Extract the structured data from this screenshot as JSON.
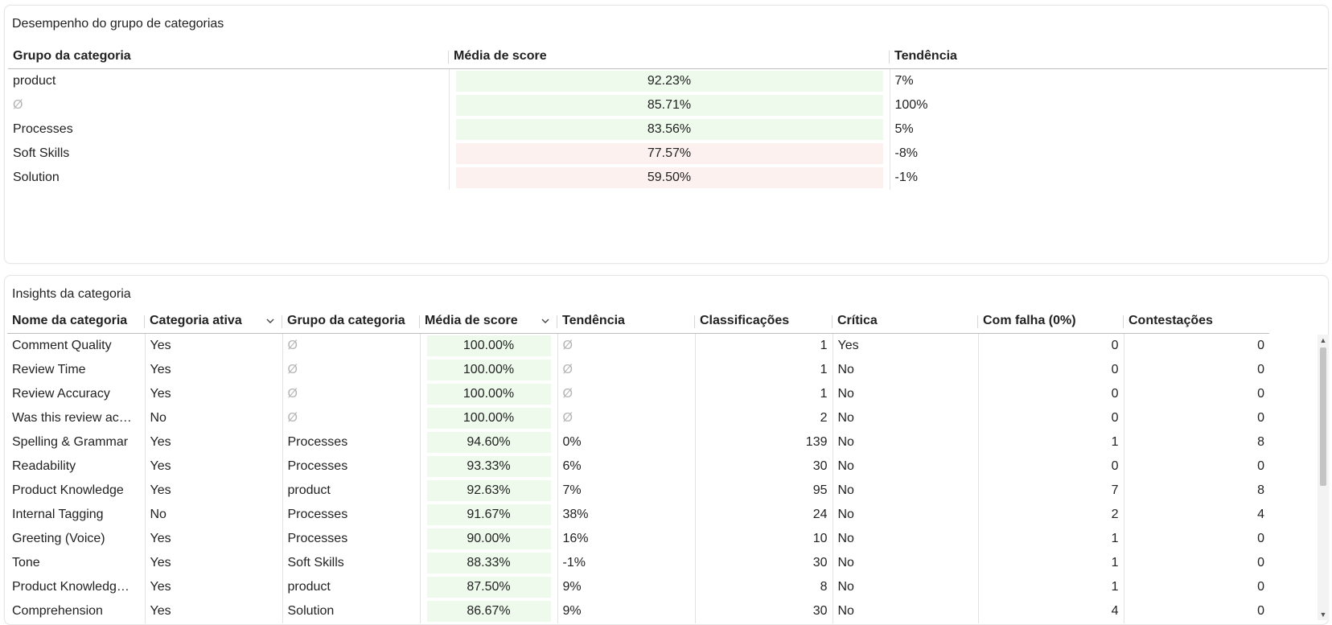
{
  "panel1": {
    "title": "Desempenho do grupo de categorias",
    "headers": [
      "Grupo da categoria",
      "Média de score",
      "Tendência"
    ],
    "rows": [
      {
        "group": "product",
        "group_null": false,
        "score": "92.23%",
        "tone": "green",
        "trend": "7%"
      },
      {
        "group": "Ø",
        "group_null": true,
        "score": "85.71%",
        "tone": "green",
        "trend": "100%"
      },
      {
        "group": "Processes",
        "group_null": false,
        "score": "83.56%",
        "tone": "green",
        "trend": "5%"
      },
      {
        "group": "Soft Skills",
        "group_null": false,
        "score": "77.57%",
        "tone": "red",
        "trend": "-8%"
      },
      {
        "group": "Solution",
        "group_null": false,
        "score": "59.50%",
        "tone": "red",
        "trend": "-1%"
      }
    ]
  },
  "panel2": {
    "title": "Insights da categoria",
    "headers": [
      "Nome da categoria",
      "Categoria ativa",
      "Grupo da categoria",
      "Média de score",
      "Tendência",
      "Classificações",
      "Crítica",
      "Com falha (0%)",
      "Contestações"
    ],
    "sortable_headers": [
      "Categoria ativa",
      "Média de score"
    ],
    "rows": [
      {
        "name": "Comment Quality",
        "active": "Yes",
        "group": "Ø",
        "score": "100.00%",
        "trend": "Ø",
        "ratings": "1",
        "critical": "Yes",
        "failed": "0",
        "disputes": "0"
      },
      {
        "name": "Review Time",
        "active": "Yes",
        "group": "Ø",
        "score": "100.00%",
        "trend": "Ø",
        "ratings": "1",
        "critical": "No",
        "failed": "0",
        "disputes": "0"
      },
      {
        "name": "Review Accuracy",
        "active": "Yes",
        "group": "Ø",
        "score": "100.00%",
        "trend": "Ø",
        "ratings": "1",
        "critical": "No",
        "failed": "0",
        "disputes": "0"
      },
      {
        "name": "Was this review ac…",
        "active": "No",
        "group": "Ø",
        "score": "100.00%",
        "trend": "Ø",
        "ratings": "2",
        "critical": "No",
        "failed": "0",
        "disputes": "0"
      },
      {
        "name": "Spelling & Grammar",
        "active": "Yes",
        "group": "Processes",
        "score": "94.60%",
        "trend": "0%",
        "ratings": "139",
        "critical": "No",
        "failed": "1",
        "disputes": "8"
      },
      {
        "name": "Readability",
        "active": "Yes",
        "group": "Processes",
        "score": "93.33%",
        "trend": "6%",
        "ratings": "30",
        "critical": "No",
        "failed": "0",
        "disputes": "0"
      },
      {
        "name": "Product Knowledge",
        "active": "Yes",
        "group": "product",
        "score": "92.63%",
        "trend": "7%",
        "ratings": "95",
        "critical": "No",
        "failed": "7",
        "disputes": "8"
      },
      {
        "name": "Internal Tagging",
        "active": "No",
        "group": "Processes",
        "score": "91.67%",
        "trend": "38%",
        "ratings": "24",
        "critical": "No",
        "failed": "2",
        "disputes": "4"
      },
      {
        "name": "Greeting (Voice)",
        "active": "Yes",
        "group": "Processes",
        "score": "90.00%",
        "trend": "16%",
        "ratings": "10",
        "critical": "No",
        "failed": "1",
        "disputes": "0"
      },
      {
        "name": "Tone",
        "active": "Yes",
        "group": "Soft Skills",
        "score": "88.33%",
        "trend": "-1%",
        "ratings": "30",
        "critical": "No",
        "failed": "1",
        "disputes": "0"
      },
      {
        "name": "Product Knowledg…",
        "active": "Yes",
        "group": "product",
        "score": "87.50%",
        "trend": "9%",
        "ratings": "8",
        "critical": "No",
        "failed": "1",
        "disputes": "0"
      },
      {
        "name": "Comprehension",
        "active": "Yes",
        "group": "Solution",
        "score": "86.67%",
        "trend": "9%",
        "ratings": "30",
        "critical": "No",
        "failed": "4",
        "disputes": "0"
      }
    ]
  },
  "colors": {
    "score_green": "#eefaec",
    "score_red": "#fdf1ef",
    "null_text": "#b5b5b5"
  },
  "icons": {
    "sort": "chevron-down-icon",
    "scroll_up": "triangle-up-icon",
    "scroll_down": "triangle-down-icon"
  }
}
